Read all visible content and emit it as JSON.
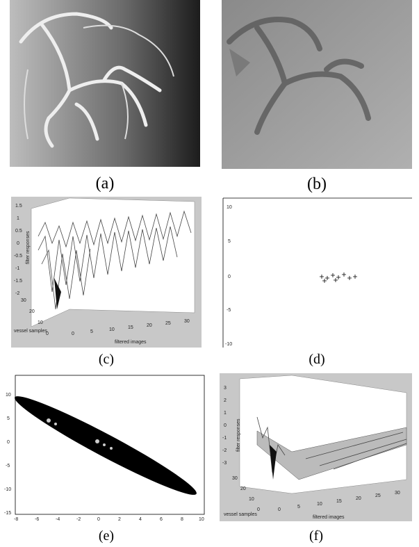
{
  "panels": [
    {
      "label": "(a)"
    },
    {
      "label": "(b)"
    },
    {
      "label": "(c)",
      "z_axis_label": "filter responses",
      "y_axis_label": "vessel samples",
      "x_axis_label": "filtered images",
      "zticks": [
        "1.5",
        "1",
        "0.5",
        "0",
        "-0.5",
        "-1",
        "-1.5",
        "-2"
      ],
      "yticks": [
        "0",
        "10",
        "20",
        "30"
      ],
      "xticks": [
        "0",
        "5",
        "10",
        "15",
        "20",
        "25",
        "30"
      ]
    },
    {
      "label": "(d)",
      "yticks": [
        "10",
        "5",
        "0",
        "-5",
        "-10"
      ]
    },
    {
      "label": "(e)",
      "yticks": [
        "10",
        "5",
        "0",
        "-5",
        "-10",
        "-15"
      ],
      "xticks": [
        "-8",
        "-6",
        "-4",
        "-2",
        "0",
        "2",
        "4",
        "6",
        "8",
        "10"
      ]
    },
    {
      "label": "(f)",
      "z_axis_label": "filter responses",
      "y_axis_label": "vessel samples",
      "x_axis_label": "filtered images",
      "zticks": [
        "3",
        "2",
        "1",
        "0",
        "-1",
        "-2",
        "-3"
      ],
      "yticks": [
        "0",
        "10",
        "20",
        "30"
      ],
      "xticks": [
        "0",
        "5",
        "10",
        "15",
        "20",
        "25",
        "30"
      ]
    }
  ]
}
